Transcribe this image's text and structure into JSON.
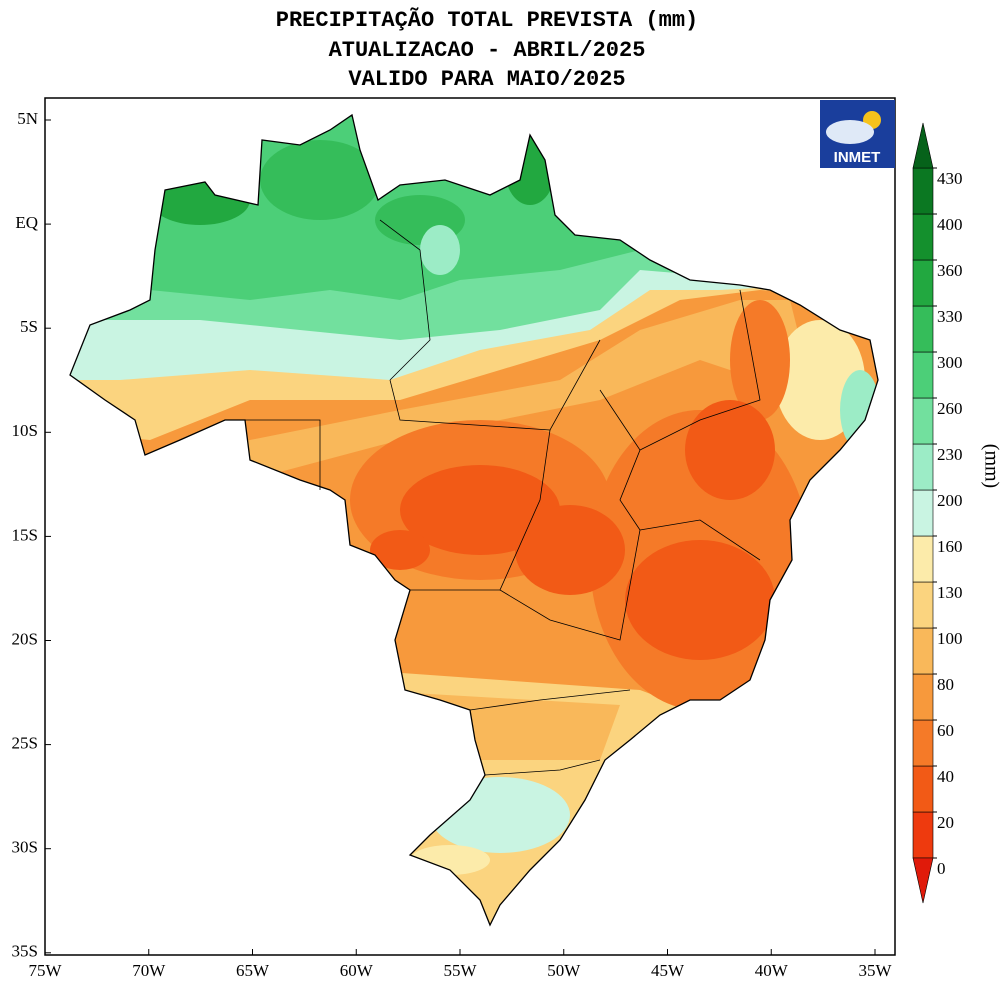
{
  "title": [
    "PRECIPITAÇÃO TOTAL PREVISTA (mm)",
    "ATUALIZACAO - ABRIL/2025",
    "VALIDO PARA MAIO/2025"
  ],
  "logo": "INMET",
  "lat_labels": [
    "5N",
    "EQ",
    "5S",
    "10S",
    "15S",
    "20S",
    "25S",
    "30S",
    "35S"
  ],
  "lon_labels": [
    "75W",
    "70W",
    "65W",
    "60W",
    "55W",
    "50W",
    "45W",
    "40W",
    "35W"
  ],
  "colorbar": {
    "label": "(mm)",
    "levels": [
      0,
      20,
      40,
      60,
      80,
      100,
      130,
      160,
      200,
      230,
      260,
      300,
      330,
      360,
      400,
      430
    ],
    "colors": [
      "#e01a0a",
      "#ee3a0e",
      "#f25a16",
      "#f57a28",
      "#f7993c",
      "#f9b85a",
      "#fbd47f",
      "#fcebaa",
      "#c9f4e2",
      "#9cecc6",
      "#72e09e",
      "#4ccf78",
      "#35bd5a",
      "#22a840",
      "#14902d",
      "#0b7822",
      "#06621a"
    ]
  }
}
